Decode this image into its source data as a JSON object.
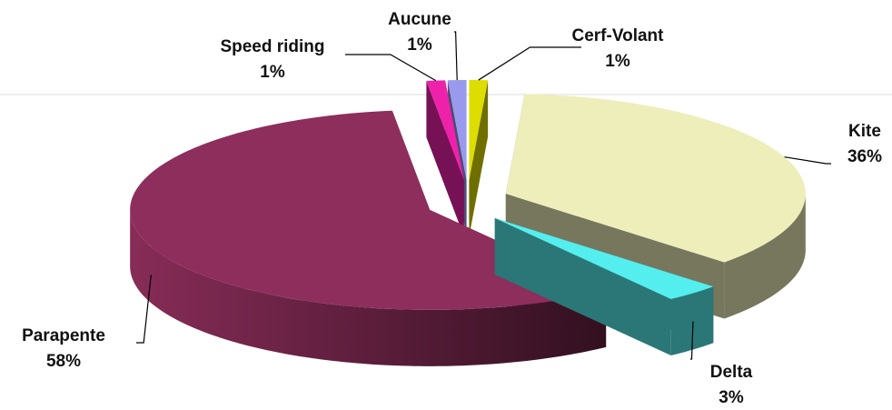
{
  "chart_data": {
    "type": "pie",
    "categories": [
      "Cerf-Volant",
      "Kite",
      "Delta",
      "Parapente",
      "Speed riding",
      "Aucune"
    ],
    "values": [
      1,
      36,
      3,
      58,
      1,
      1
    ],
    "value_labels": [
      "1%",
      "36%",
      "3%",
      "58%",
      "1%",
      "1%"
    ],
    "colors": [
      "#dddd00",
      "#eeeebb",
      "#55eeee",
      "#8e2e5c",
      "#ee22aa",
      "#9999ee"
    ],
    "three_d": true,
    "exploded": true
  }
}
